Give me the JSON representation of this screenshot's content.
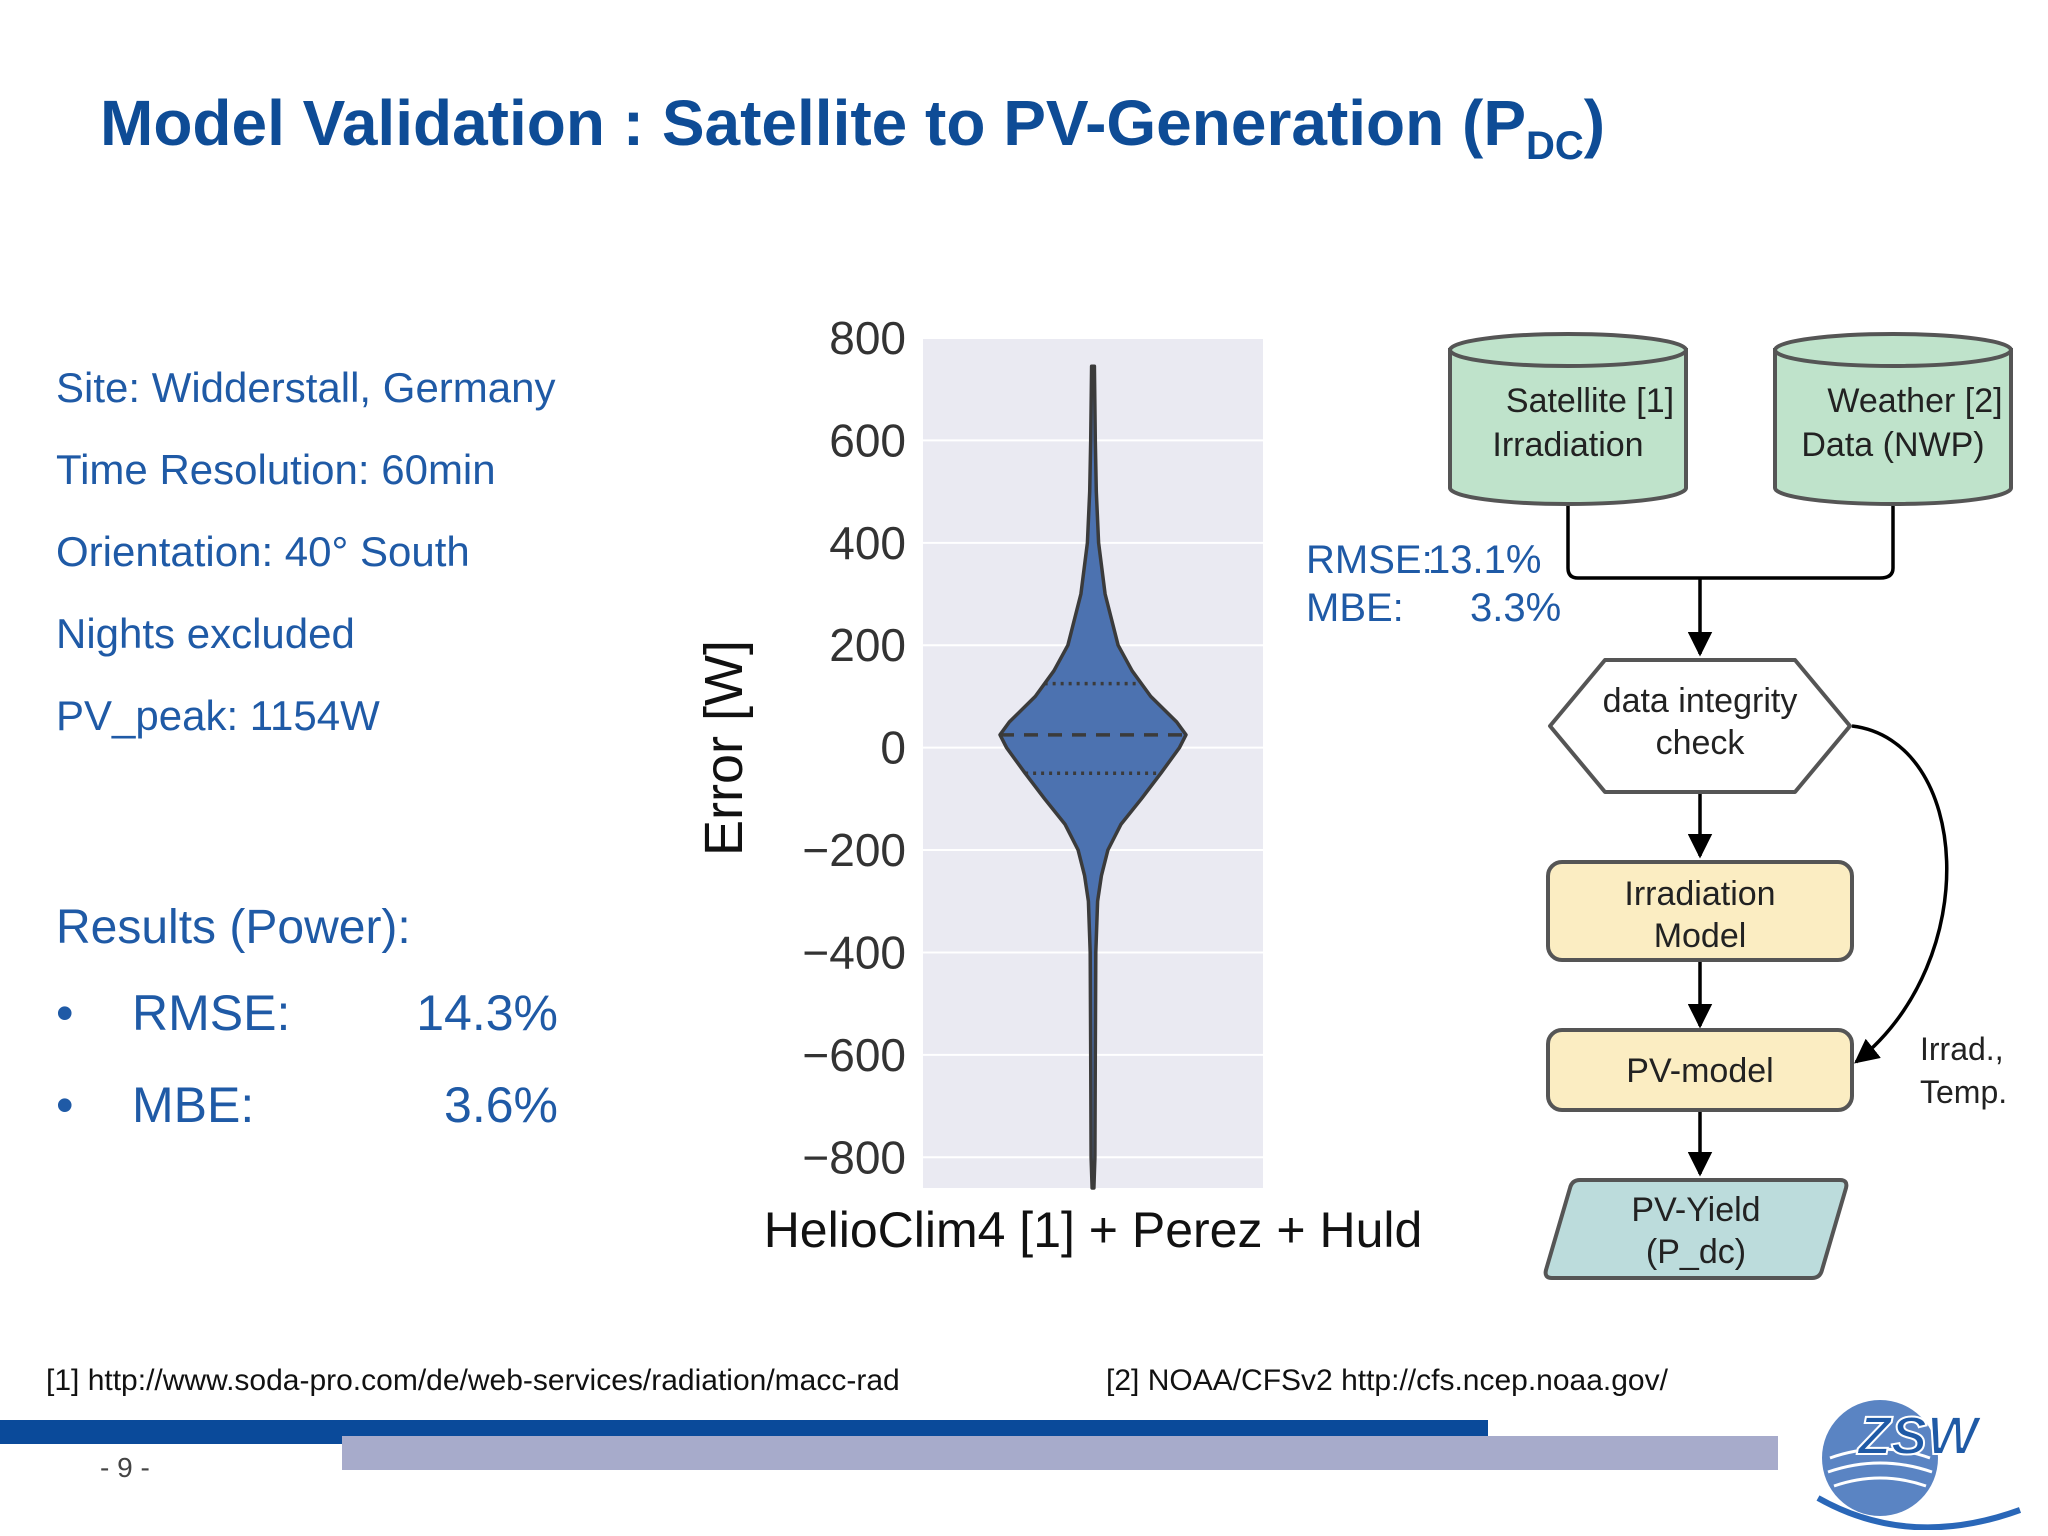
{
  "slide": {
    "title": "Model Validation : Satellite to PV-Generation (P",
    "title_sub": "DC",
    "title_close": ")",
    "colors": {
      "title": "#0e4c96",
      "text": "#1f5aa6",
      "violin": "#4c72b0",
      "band_blue": "#0a4a9a",
      "band_grey": "#a7abcb"
    }
  },
  "info": {
    "site": "Site: Widderstall, Germany",
    "time_resolution": "Time Resolution: 60min",
    "orientation": "Orientation: 40° South",
    "nights": "Nights excluded",
    "pv_peak": "PV_peak: 1154W"
  },
  "results": {
    "heading": "Results (Power):",
    "bullet": "•",
    "rmse_label": "RMSE:",
    "rmse_value": "14.3%",
    "mbe_label": "MBE:",
    "mbe_value": "3.6%"
  },
  "flow_stats": {
    "rmse_label": "RMSE:",
    "rmse_value": "13.1%",
    "mbe_label": "MBE:",
    "mbe_value": "3.3%"
  },
  "flowchart": {
    "satellite": [
      "Satellite [1]",
      "Irradiation"
    ],
    "weather": [
      "Weather [2]",
      "Data (NWP)"
    ],
    "integrity": [
      "data integrity",
      "check"
    ],
    "irradiation_model": [
      "Irradiation",
      "Model"
    ],
    "pv_model": "PV-model",
    "pv_yield": [
      "PV-Yield",
      "(P_dc)"
    ],
    "side_label": [
      "Irrad.,",
      "Temp."
    ]
  },
  "chart_data": {
    "type": "violin",
    "xlabel": "HelioClim4 [1] + Perez + Huld",
    "ylabel": "Error [W]",
    "ylim": [
      -860,
      800
    ],
    "yticks": [
      800,
      600,
      400,
      200,
      0,
      -200,
      -400,
      -600,
      -800
    ],
    "ytick_labels": [
      "800",
      "600",
      "400",
      "200",
      "0",
      "−200",
      "−400",
      "−600",
      "−800"
    ],
    "grid": true,
    "categories": [
      "HelioClim4 [1] + Perez + Huld"
    ],
    "distribution": {
      "min": -860,
      "max": 745,
      "q1": -50,
      "median": 25,
      "q3": 125,
      "density_profile": [
        [
          -860,
          0.01
        ],
        [
          -800,
          0.02
        ],
        [
          -600,
          0.025
        ],
        [
          -400,
          0.03
        ],
        [
          -300,
          0.05
        ],
        [
          -250,
          0.09
        ],
        [
          -200,
          0.16
        ],
        [
          -150,
          0.3
        ],
        [
          -100,
          0.52
        ],
        [
          -50,
          0.73
        ],
        [
          0,
          0.93
        ],
        [
          25,
          1.0
        ],
        [
          50,
          0.9
        ],
        [
          100,
          0.62
        ],
        [
          150,
          0.42
        ],
        [
          200,
          0.27
        ],
        [
          300,
          0.13
        ],
        [
          400,
          0.06
        ],
        [
          500,
          0.035
        ],
        [
          600,
          0.025
        ],
        [
          745,
          0.015
        ]
      ]
    }
  },
  "references": {
    "ref1": "[1] http://www.soda-pro.com/de/web-services/radiation/macc-rad",
    "ref2": "[2] NOAA/CFSv2  http://cfs.ncep.noaa.gov/"
  },
  "footer": {
    "page": "- 9 -",
    "logo_text": "ZSW"
  }
}
